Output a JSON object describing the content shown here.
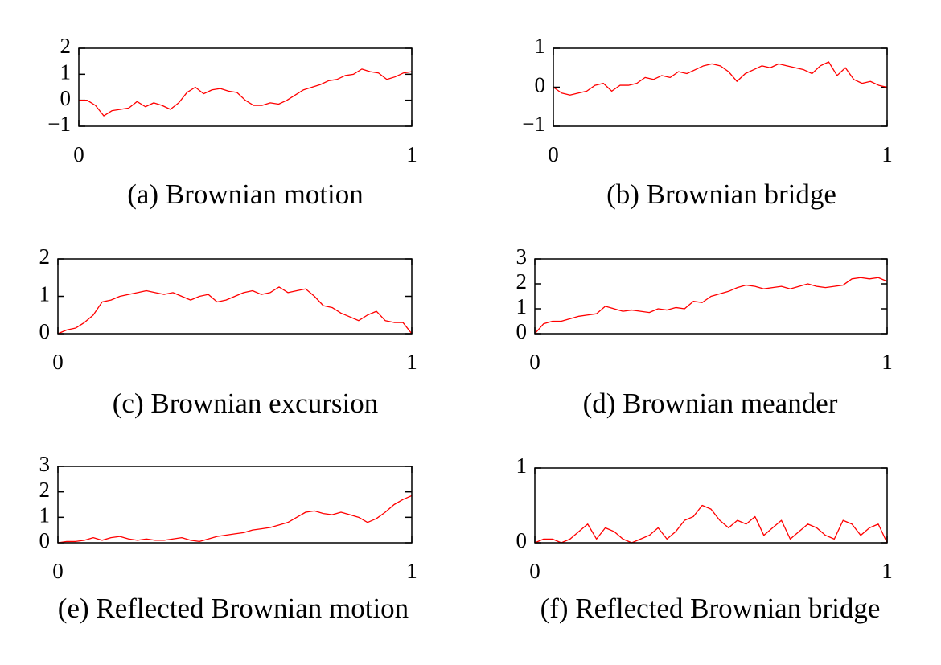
{
  "chart_data": [
    {
      "type": "line",
      "title": "(a) Brownian motion",
      "color": "#ff0000",
      "x": [
        0,
        0.025,
        0.05,
        0.075,
        0.1,
        0.125,
        0.15,
        0.175,
        0.2,
        0.225,
        0.25,
        0.275,
        0.3,
        0.325,
        0.35,
        0.375,
        0.4,
        0.425,
        0.45,
        0.475,
        0.5,
        0.525,
        0.55,
        0.575,
        0.6,
        0.625,
        0.65,
        0.675,
        0.7,
        0.725,
        0.75,
        0.775,
        0.8,
        0.825,
        0.85,
        0.875,
        0.9,
        0.925,
        0.95,
        0.975,
        1
      ],
      "values": [
        0,
        0,
        -0.2,
        -0.6,
        -0.4,
        -0.35,
        -0.3,
        -0.05,
        -0.25,
        -0.1,
        -0.2,
        -0.35,
        -0.1,
        0.3,
        0.5,
        0.25,
        0.4,
        0.45,
        0.35,
        0.3,
        0,
        -0.2,
        -0.2,
        -0.1,
        -0.15,
        0,
        0.2,
        0.4,
        0.5,
        0.6,
        0.75,
        0.8,
        0.95,
        1.0,
        1.2,
        1.1,
        1.05,
        0.8,
        0.9,
        1.05,
        1.1
      ],
      "xlim": [
        0,
        1
      ],
      "xticks": [
        0,
        1
      ],
      "ylim": [
        -1,
        2
      ],
      "yticks": [
        {
          "value": -1,
          "label": "−1"
        },
        0,
        1,
        2
      ]
    },
    {
      "type": "line",
      "title": "(b) Brownian bridge",
      "color": "#ff0000",
      "x": [
        0,
        0.025,
        0.05,
        0.075,
        0.1,
        0.125,
        0.15,
        0.175,
        0.2,
        0.225,
        0.25,
        0.275,
        0.3,
        0.325,
        0.35,
        0.375,
        0.4,
        0.425,
        0.45,
        0.475,
        0.5,
        0.525,
        0.55,
        0.575,
        0.6,
        0.625,
        0.65,
        0.675,
        0.7,
        0.725,
        0.75,
        0.775,
        0.8,
        0.825,
        0.85,
        0.875,
        0.9,
        0.925,
        0.95,
        0.975,
        1
      ],
      "values": [
        0,
        -0.15,
        -0.2,
        -0.15,
        -0.1,
        0.05,
        0.1,
        -0.1,
        0.05,
        0.05,
        0.1,
        0.25,
        0.2,
        0.3,
        0.25,
        0.4,
        0.35,
        0.45,
        0.55,
        0.6,
        0.55,
        0.4,
        0.15,
        0.35,
        0.45,
        0.55,
        0.5,
        0.6,
        0.55,
        0.5,
        0.45,
        0.35,
        0.55,
        0.65,
        0.3,
        0.5,
        0.2,
        0.1,
        0.15,
        0.05,
        0
      ],
      "xlim": [
        0,
        1
      ],
      "xticks": [
        0,
        1
      ],
      "ylim": [
        -1,
        1
      ],
      "yticks": [
        {
          "value": -1,
          "label": "−1"
        },
        0,
        1
      ]
    },
    {
      "type": "line",
      "title": "(c) Brownian excursion",
      "color": "#ff0000",
      "x": [
        0,
        0.025,
        0.05,
        0.075,
        0.1,
        0.125,
        0.15,
        0.175,
        0.2,
        0.225,
        0.25,
        0.275,
        0.3,
        0.325,
        0.35,
        0.375,
        0.4,
        0.425,
        0.45,
        0.475,
        0.5,
        0.525,
        0.55,
        0.575,
        0.6,
        0.625,
        0.65,
        0.675,
        0.7,
        0.725,
        0.75,
        0.775,
        0.8,
        0.825,
        0.85,
        0.875,
        0.9,
        0.925,
        0.95,
        0.975,
        1
      ],
      "values": [
        0,
        0.1,
        0.15,
        0.3,
        0.5,
        0.85,
        0.9,
        1.0,
        1.05,
        1.1,
        1.15,
        1.1,
        1.05,
        1.1,
        1.0,
        0.9,
        1.0,
        1.05,
        0.85,
        0.9,
        1.0,
        1.1,
        1.15,
        1.05,
        1.1,
        1.25,
        1.1,
        1.15,
        1.2,
        1.0,
        0.75,
        0.7,
        0.55,
        0.45,
        0.35,
        0.5,
        0.6,
        0.35,
        0.3,
        0.3,
        0
      ],
      "xlim": [
        0,
        1
      ],
      "xticks": [
        0,
        1
      ],
      "ylim": [
        0,
        2
      ],
      "yticks": [
        0,
        1,
        2
      ]
    },
    {
      "type": "line",
      "title": "(d) Brownian meander",
      "color": "#ff0000",
      "x": [
        0,
        0.025,
        0.05,
        0.075,
        0.1,
        0.125,
        0.15,
        0.175,
        0.2,
        0.225,
        0.25,
        0.275,
        0.3,
        0.325,
        0.35,
        0.375,
        0.4,
        0.425,
        0.45,
        0.475,
        0.5,
        0.525,
        0.55,
        0.575,
        0.6,
        0.625,
        0.65,
        0.675,
        0.7,
        0.725,
        0.75,
        0.775,
        0.8,
        0.825,
        0.85,
        0.875,
        0.9,
        0.925,
        0.95,
        0.975,
        1
      ],
      "values": [
        0,
        0.4,
        0.5,
        0.5,
        0.6,
        0.7,
        0.75,
        0.8,
        1.1,
        1.0,
        0.9,
        0.95,
        0.9,
        0.85,
        1.0,
        0.95,
        1.05,
        1.0,
        1.3,
        1.25,
        1.5,
        1.6,
        1.7,
        1.85,
        1.95,
        1.9,
        1.8,
        1.85,
        1.9,
        1.8,
        1.9,
        2.0,
        1.9,
        1.85,
        1.9,
        1.95,
        2.2,
        2.25,
        2.2,
        2.25,
        2.1
      ],
      "xlim": [
        0,
        1
      ],
      "xticks": [
        0,
        1
      ],
      "ylim": [
        0,
        3
      ],
      "yticks": [
        0,
        1,
        2,
        3
      ]
    },
    {
      "type": "line",
      "title": "(e) Reflected Brownian motion",
      "color": "#ff0000",
      "x": [
        0,
        0.025,
        0.05,
        0.075,
        0.1,
        0.125,
        0.15,
        0.175,
        0.2,
        0.225,
        0.25,
        0.275,
        0.3,
        0.325,
        0.35,
        0.375,
        0.4,
        0.425,
        0.45,
        0.475,
        0.5,
        0.525,
        0.55,
        0.575,
        0.6,
        0.625,
        0.65,
        0.675,
        0.7,
        0.725,
        0.75,
        0.775,
        0.8,
        0.825,
        0.85,
        0.875,
        0.9,
        0.925,
        0.95,
        0.975,
        1
      ],
      "values": [
        0,
        0.05,
        0.05,
        0.1,
        0.2,
        0.1,
        0.2,
        0.25,
        0.15,
        0.1,
        0.15,
        0.1,
        0.1,
        0.15,
        0.2,
        0.1,
        0.05,
        0.15,
        0.25,
        0.3,
        0.35,
        0.4,
        0.5,
        0.55,
        0.6,
        0.7,
        0.8,
        1.0,
        1.2,
        1.25,
        1.15,
        1.1,
        1.2,
        1.1,
        1.0,
        0.8,
        0.95,
        1.2,
        1.5,
        1.7,
        1.85
      ],
      "xlim": [
        0,
        1
      ],
      "xticks": [
        0,
        1
      ],
      "ylim": [
        0,
        3
      ],
      "yticks": [
        0,
        1,
        2,
        3
      ]
    },
    {
      "type": "line",
      "title": "(f) Reflected Brownian bridge",
      "color": "#ff0000",
      "x": [
        0,
        0.025,
        0.05,
        0.075,
        0.1,
        0.125,
        0.15,
        0.175,
        0.2,
        0.225,
        0.25,
        0.275,
        0.3,
        0.325,
        0.35,
        0.375,
        0.4,
        0.425,
        0.45,
        0.475,
        0.5,
        0.525,
        0.55,
        0.575,
        0.6,
        0.625,
        0.65,
        0.675,
        0.7,
        0.725,
        0.75,
        0.775,
        0.8,
        0.825,
        0.85,
        0.875,
        0.9,
        0.925,
        0.95,
        0.975,
        1
      ],
      "values": [
        0,
        0.05,
        0.05,
        0,
        0.05,
        0.15,
        0.25,
        0.05,
        0.2,
        0.15,
        0.05,
        0,
        0.05,
        0.1,
        0.2,
        0.05,
        0.15,
        0.3,
        0.35,
        0.5,
        0.45,
        0.3,
        0.2,
        0.3,
        0.25,
        0.35,
        0.1,
        0.2,
        0.3,
        0.05,
        0.15,
        0.25,
        0.2,
        0.1,
        0.05,
        0.3,
        0.25,
        0.1,
        0.2,
        0.25,
        0
      ],
      "xlim": [
        0,
        1
      ],
      "xticks": [
        0,
        1
      ],
      "ylim": [
        0,
        1
      ],
      "yticks": [
        0,
        1
      ]
    }
  ]
}
